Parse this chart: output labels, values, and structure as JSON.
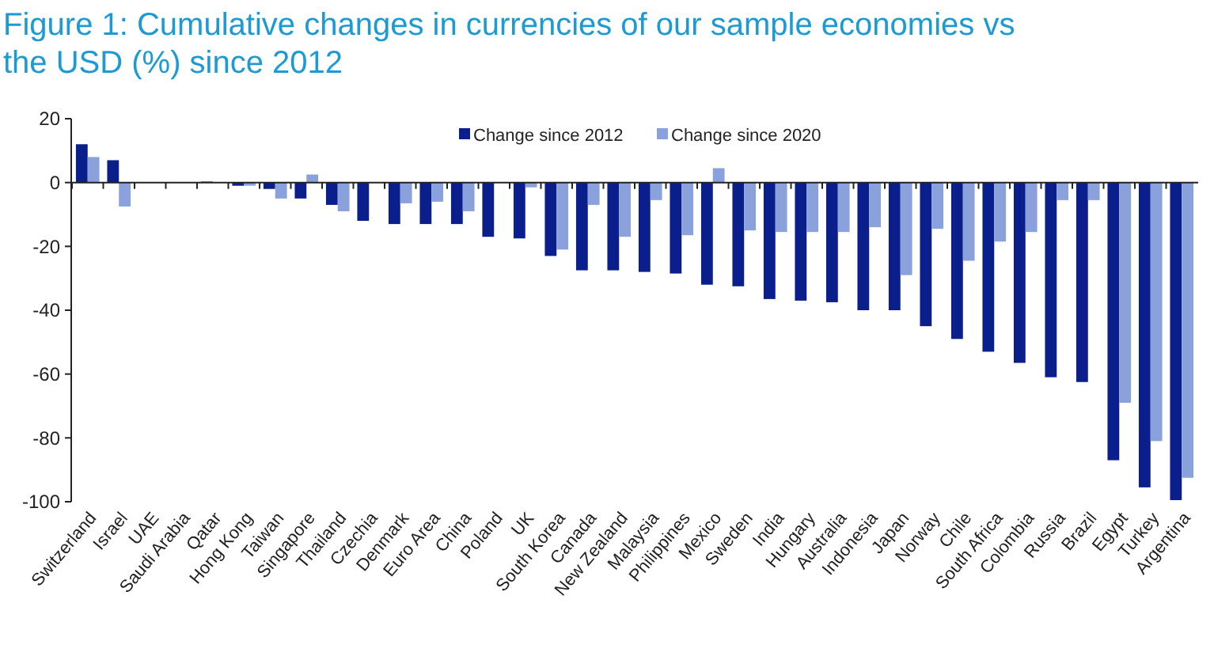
{
  "chart_data": {
    "type": "bar",
    "title": "Figure 1: Cumulative changes in currencies of our sample economies vs the USD (%) since 2012",
    "categories": [
      "Switzerland",
      "Israel",
      "UAE",
      "Saudi Arabia",
      "Qatar",
      "Hong Kong",
      "Taiwan",
      "Singapore",
      "Thailand",
      "Czechia",
      "Denmark",
      "Euro Area",
      "China",
      "Poland",
      "UK",
      "South Korea",
      "Canada",
      "New Zealand",
      "Malaysia",
      "Philippines",
      "Mexico",
      "Sweden",
      "India",
      "Hungary",
      "Australia",
      "Indonesia",
      "Japan",
      "Norway",
      "Chile",
      "South Africa",
      "Colombia",
      "Russia",
      "Brazil",
      "Egypt",
      "Turkey",
      "Argentina"
    ],
    "series": [
      {
        "name": "Change since 2012",
        "color": "#0b1f8c",
        "values": [
          12,
          7,
          0,
          0,
          0.3,
          -1,
          -2,
          -5,
          -7,
          -12,
          -13,
          -13,
          -13,
          -17,
          -17.5,
          -23,
          -27.5,
          -27.5,
          -28,
          -28.5,
          -32,
          -32.5,
          -36.5,
          -37,
          -37.5,
          -40,
          -40,
          -45,
          -49,
          -53,
          -56.5,
          -61,
          -62.5,
          -87,
          -95.5,
          -99.5
        ]
      },
      {
        "name": "Change since 2020",
        "color": "#8aa1dc",
        "values": [
          8,
          -7.5,
          0,
          0,
          0,
          -1,
          -5,
          2.5,
          -9,
          0,
          -6.5,
          -6,
          -9,
          0,
          -1.5,
          -21,
          -7,
          -17,
          -5.5,
          -16.5,
          4.5,
          -15,
          -15.5,
          -15.5,
          -15.5,
          -14,
          -29,
          -14.5,
          -24.5,
          -18.5,
          -15.5,
          -5.5,
          -5.5,
          -69,
          -81,
          -92.5
        ]
      }
    ],
    "ylim": [
      -100,
      20
    ],
    "yticks": [
      -100,
      -80,
      -60,
      -40,
      -20,
      0,
      20
    ],
    "legend": "top"
  }
}
